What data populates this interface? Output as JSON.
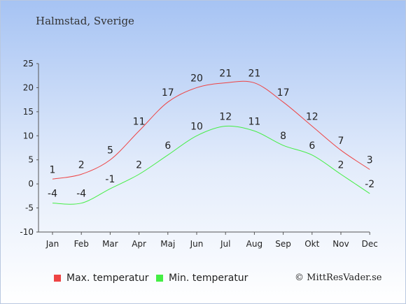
{
  "header": {
    "location": "Halmstad, Sverige"
  },
  "chart_data": {
    "type": "line",
    "categories": [
      "Jan",
      "Feb",
      "Mar",
      "Apr",
      "Maj",
      "Jun",
      "Jul",
      "Aug",
      "Sep",
      "Okt",
      "Nov",
      "Dec"
    ],
    "series": [
      {
        "name": "Max. temperatur",
        "values": [
          1,
          2,
          5,
          11,
          17,
          20,
          21,
          21,
          17,
          12,
          7,
          3
        ],
        "color": "#ee4444"
      },
      {
        "name": "Min. temperatur",
        "values": [
          -4,
          -4,
          -1,
          2,
          6,
          10,
          12,
          11,
          8,
          6,
          2,
          -2
        ],
        "color": "#44ee44"
      }
    ],
    "yticks": [
      25,
      20,
      15,
      10,
      5,
      0,
      -5,
      -10
    ],
    "ylim": [
      -10,
      25
    ],
    "xlabel": "",
    "ylabel": "",
    "grid": false,
    "legend_placement": "bottom"
  },
  "legend": {
    "max_label": "Max. temperatur",
    "min_label": "Min. temperatur"
  },
  "footer": {
    "copyright": "© MittResVader.se"
  }
}
